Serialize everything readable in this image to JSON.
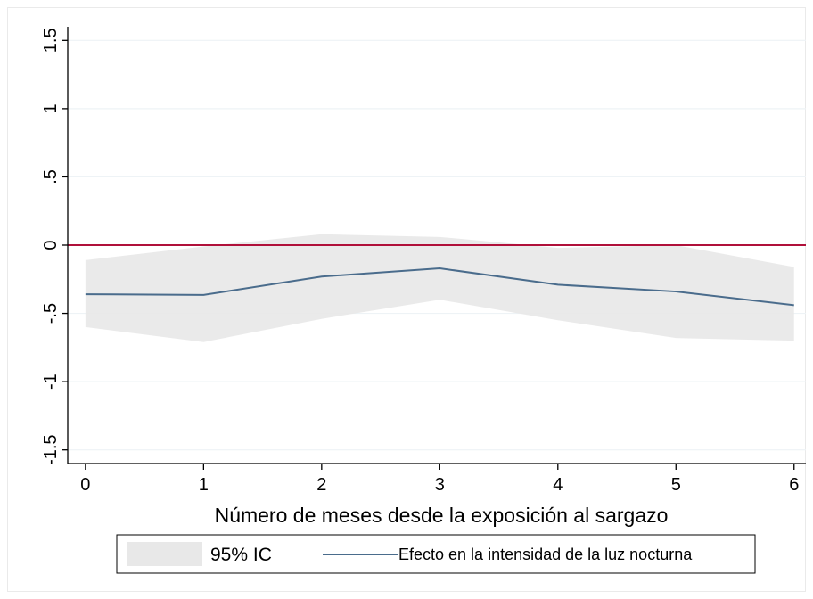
{
  "chart_data": {
    "type": "line",
    "title": "",
    "xlabel": "Número de meses desde la exposición al sargazo",
    "ylabel": "",
    "x": [
      0,
      1,
      2,
      3,
      4,
      5,
      6
    ],
    "x_tick_labels": [
      "0",
      "1",
      "2",
      "3",
      "4",
      "5",
      "6"
    ],
    "y_ticks": [
      -1.5,
      -1,
      -0.5,
      0,
      0.5,
      1,
      1.5
    ],
    "y_tick_labels": [
      "-1.5",
      "-1",
      "-.5",
      "0",
      ".5",
      "1",
      "1.5"
    ],
    "xlim": [
      -0.15,
      6.1
    ],
    "ylim": [
      -1.6,
      1.6
    ],
    "grid": true,
    "series": [
      {
        "name": "Efecto en la intensidad de la luz nocturna",
        "type": "line",
        "color": "#4a6c8c",
        "values": [
          -0.36,
          -0.365,
          -0.23,
          -0.17,
          -0.29,
          -0.34,
          -0.44
        ]
      },
      {
        "name": "95% IC",
        "type": "band",
        "color": "#e8e8e8",
        "upper": [
          -0.11,
          -0.01,
          0.08,
          0.06,
          -0.02,
          0.0,
          -0.16
        ],
        "lower": [
          -0.6,
          -0.71,
          -0.54,
          -0.4,
          -0.55,
          -0.68,
          -0.7
        ]
      }
    ],
    "reference_line": {
      "y": 0,
      "color": "#b0103a"
    },
    "legend_position": "bottom",
    "legend": [
      {
        "label": "95% IC",
        "kind": "band"
      },
      {
        "label": "Efecto en la intensidad de la luz nocturna",
        "kind": "line"
      }
    ]
  }
}
